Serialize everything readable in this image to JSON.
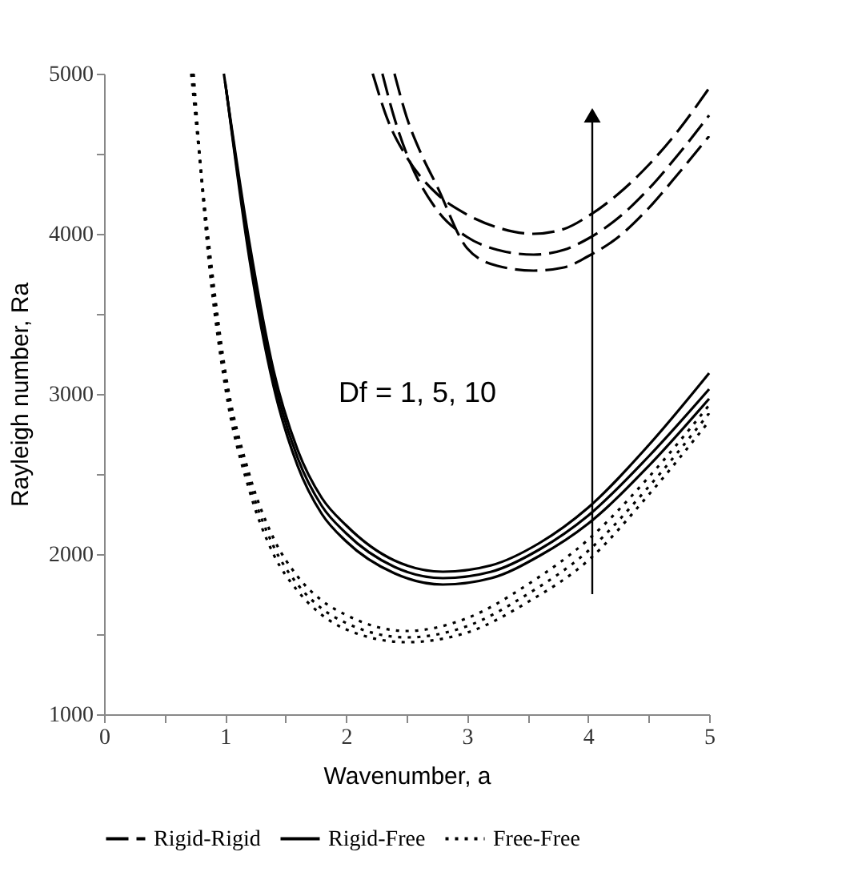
{
  "chart_data": {
    "type": "line",
    "xlabel": "Wavenumber, a",
    "ylabel": "Rayleigh number, Ra",
    "xlim": [
      0,
      5
    ],
    "ylim": [
      1000,
      5000
    ],
    "xticks": [
      0,
      {
        "value": 0.5,
        "label": null
      },
      1,
      {
        "value": 1.5,
        "label": null
      },
      2,
      {
        "value": 2.5,
        "label": null
      },
      3,
      {
        "value": 3.5,
        "label": null
      },
      4,
      {
        "value": 4.5,
        "label": null
      },
      5
    ],
    "yticks": [
      1000,
      {
        "value": 1500,
        "label": null
      },
      2000,
      {
        "value": 2500,
        "label": null
      },
      3000,
      {
        "value": 3500,
        "label": null
      },
      4000,
      {
        "value": 4500,
        "label": null
      },
      5000
    ],
    "grid": false,
    "legend": "bottom",
    "marker": "none",
    "annotations": [
      "Df = 1, 5, 10"
    ],
    "series": [
      {
        "name": "Rigid-Rigid",
        "color": "#000000",
        "line_style": "dashed",
        "x": [
          2.22,
          2.35,
          2.5,
          2.75,
          3.0,
          3.25,
          3.55,
          3.8,
          4.0,
          4.25,
          4.5,
          4.75,
          5.0
        ],
        "values": [
          5000,
          4700,
          4480,
          4250,
          4120,
          4040,
          4000,
          4030,
          4110,
          4250,
          4430,
          4650,
          4910
        ]
      },
      {
        "color": "#000000",
        "line_style": "dashed",
        "x": [
          2.3,
          2.4,
          2.5,
          2.75,
          3.0,
          3.25,
          3.55,
          3.8,
          4.0,
          4.25,
          4.5,
          4.75,
          5.0
        ],
        "values": [
          5000,
          4720,
          4500,
          4150,
          3980,
          3900,
          3870,
          3900,
          3970,
          4100,
          4280,
          4500,
          4740
        ]
      },
      {
        "color": "#000000",
        "line_style": "dashed",
        "x": [
          2.4,
          2.5,
          2.62,
          2.75,
          3.0,
          3.25,
          3.55,
          3.8,
          4.0,
          4.25,
          4.5,
          4.75,
          5.0
        ],
        "values": [
          5000,
          4730,
          4500,
          4300,
          3910,
          3800,
          3770,
          3790,
          3860,
          3980,
          4160,
          4380,
          4610
        ]
      },
      {
        "name": "Rigid-Free",
        "color": "#000000",
        "line_style": "solid",
        "x": [
          0.99,
          1.2,
          1.4,
          1.6,
          1.8,
          2.0,
          2.4,
          2.8,
          3.2,
          3.6,
          4.0,
          4.5,
          5.0
        ],
        "values": [
          5000,
          3950,
          3150,
          2650,
          2350,
          2180,
          1960,
          1890,
          1930,
          2070,
          2290,
          2680,
          3130
        ]
      },
      {
        "color": "#000000",
        "line_style": "solid",
        "x": [
          1.0,
          1.2,
          1.4,
          1.6,
          1.8,
          2.0,
          2.4,
          2.8,
          3.2,
          3.6,
          4.0,
          4.5,
          5.0
        ],
        "values": [
          4950,
          3900,
          3100,
          2600,
          2300,
          2130,
          1920,
          1850,
          1890,
          2030,
          2240,
          2610,
          3030
        ]
      },
      {
        "color": "#000000",
        "line_style": "solid",
        "x": [
          1.01,
          1.2,
          1.4,
          1.6,
          1.8,
          2.0,
          2.4,
          2.8,
          3.2,
          3.6,
          4.0,
          4.5,
          5.0
        ],
        "values": [
          4900,
          3850,
          3050,
          2550,
          2250,
          2080,
          1880,
          1810,
          1850,
          1990,
          2190,
          2550,
          2970
        ]
      },
      {
        "name": "Free-Free",
        "color": "#000000",
        "line_style": "dotted",
        "x": [
          0.72,
          0.85,
          1.0,
          1.2,
          1.4,
          1.6,
          1.8,
          2.0,
          2.5,
          3.0,
          3.5,
          4.0,
          4.5,
          5.0
        ],
        "values": [
          5000,
          4050,
          3150,
          2500,
          2100,
          1860,
          1710,
          1620,
          1520,
          1600,
          1810,
          2090,
          2480,
          2930
        ]
      },
      {
        "color": "#000000",
        "line_style": "dotted",
        "x": [
          0.73,
          0.85,
          1.0,
          1.2,
          1.4,
          1.6,
          1.8,
          2.0,
          2.5,
          3.0,
          3.5,
          4.0,
          4.5,
          5.0
        ],
        "values": [
          5000,
          4000,
          3100,
          2450,
          2050,
          1810,
          1660,
          1570,
          1480,
          1550,
          1750,
          2020,
          2420,
          2880
        ]
      },
      {
        "color": "#000000",
        "line_style": "dotted",
        "x": [
          0.74,
          0.85,
          1.0,
          1.2,
          1.4,
          1.6,
          1.8,
          2.0,
          2.5,
          3.0,
          3.5,
          4.0,
          4.5,
          5.0
        ],
        "values": [
          5000,
          3950,
          3050,
          2400,
          2000,
          1770,
          1620,
          1530,
          1450,
          1510,
          1700,
          1960,
          2370,
          2830
        ]
      }
    ]
  }
}
